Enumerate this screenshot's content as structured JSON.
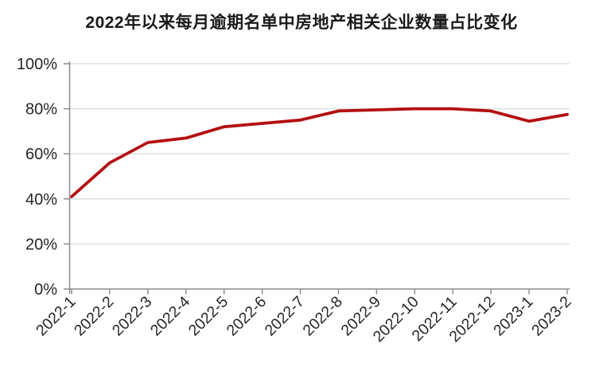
{
  "title": "2022年以来每月逾期名单中房地产相关企业数量占比变化",
  "colors": {
    "background": "#ffffff",
    "line": "#b40f12",
    "gridline": "#d9d9d9",
    "axis": "#8c8c8c",
    "tick_label": "#262626",
    "title": "#1a1a1a"
  },
  "chart_data": {
    "type": "line",
    "title": "2022年以来每月逾期名单中房地产相关企业数量占比变化",
    "categories": [
      "2022-1",
      "2022-2",
      "2022-3",
      "2022-4",
      "2022-5",
      "2022-6",
      "2022-7",
      "2022-8",
      "2022-9",
      "2022-10",
      "2022-11",
      "2022-12",
      "2023-1",
      "2023-2"
    ],
    "values": [
      41,
      56,
      65,
      67,
      72,
      73.5,
      75,
      79,
      79.5,
      80,
      80,
      79,
      74.5,
      77.5
    ],
    "xlabel": "",
    "ylabel": "",
    "ylim": [
      0,
      100
    ],
    "ytick_step": 20,
    "ytick_labels": [
      "0%",
      "20%",
      "40%",
      "60%",
      "80%",
      "100%"
    ],
    "grid": "horizontal-only",
    "legend": "none",
    "x_label_rotation": -45,
    "series_name": "房地产相关企业数量占比"
  }
}
